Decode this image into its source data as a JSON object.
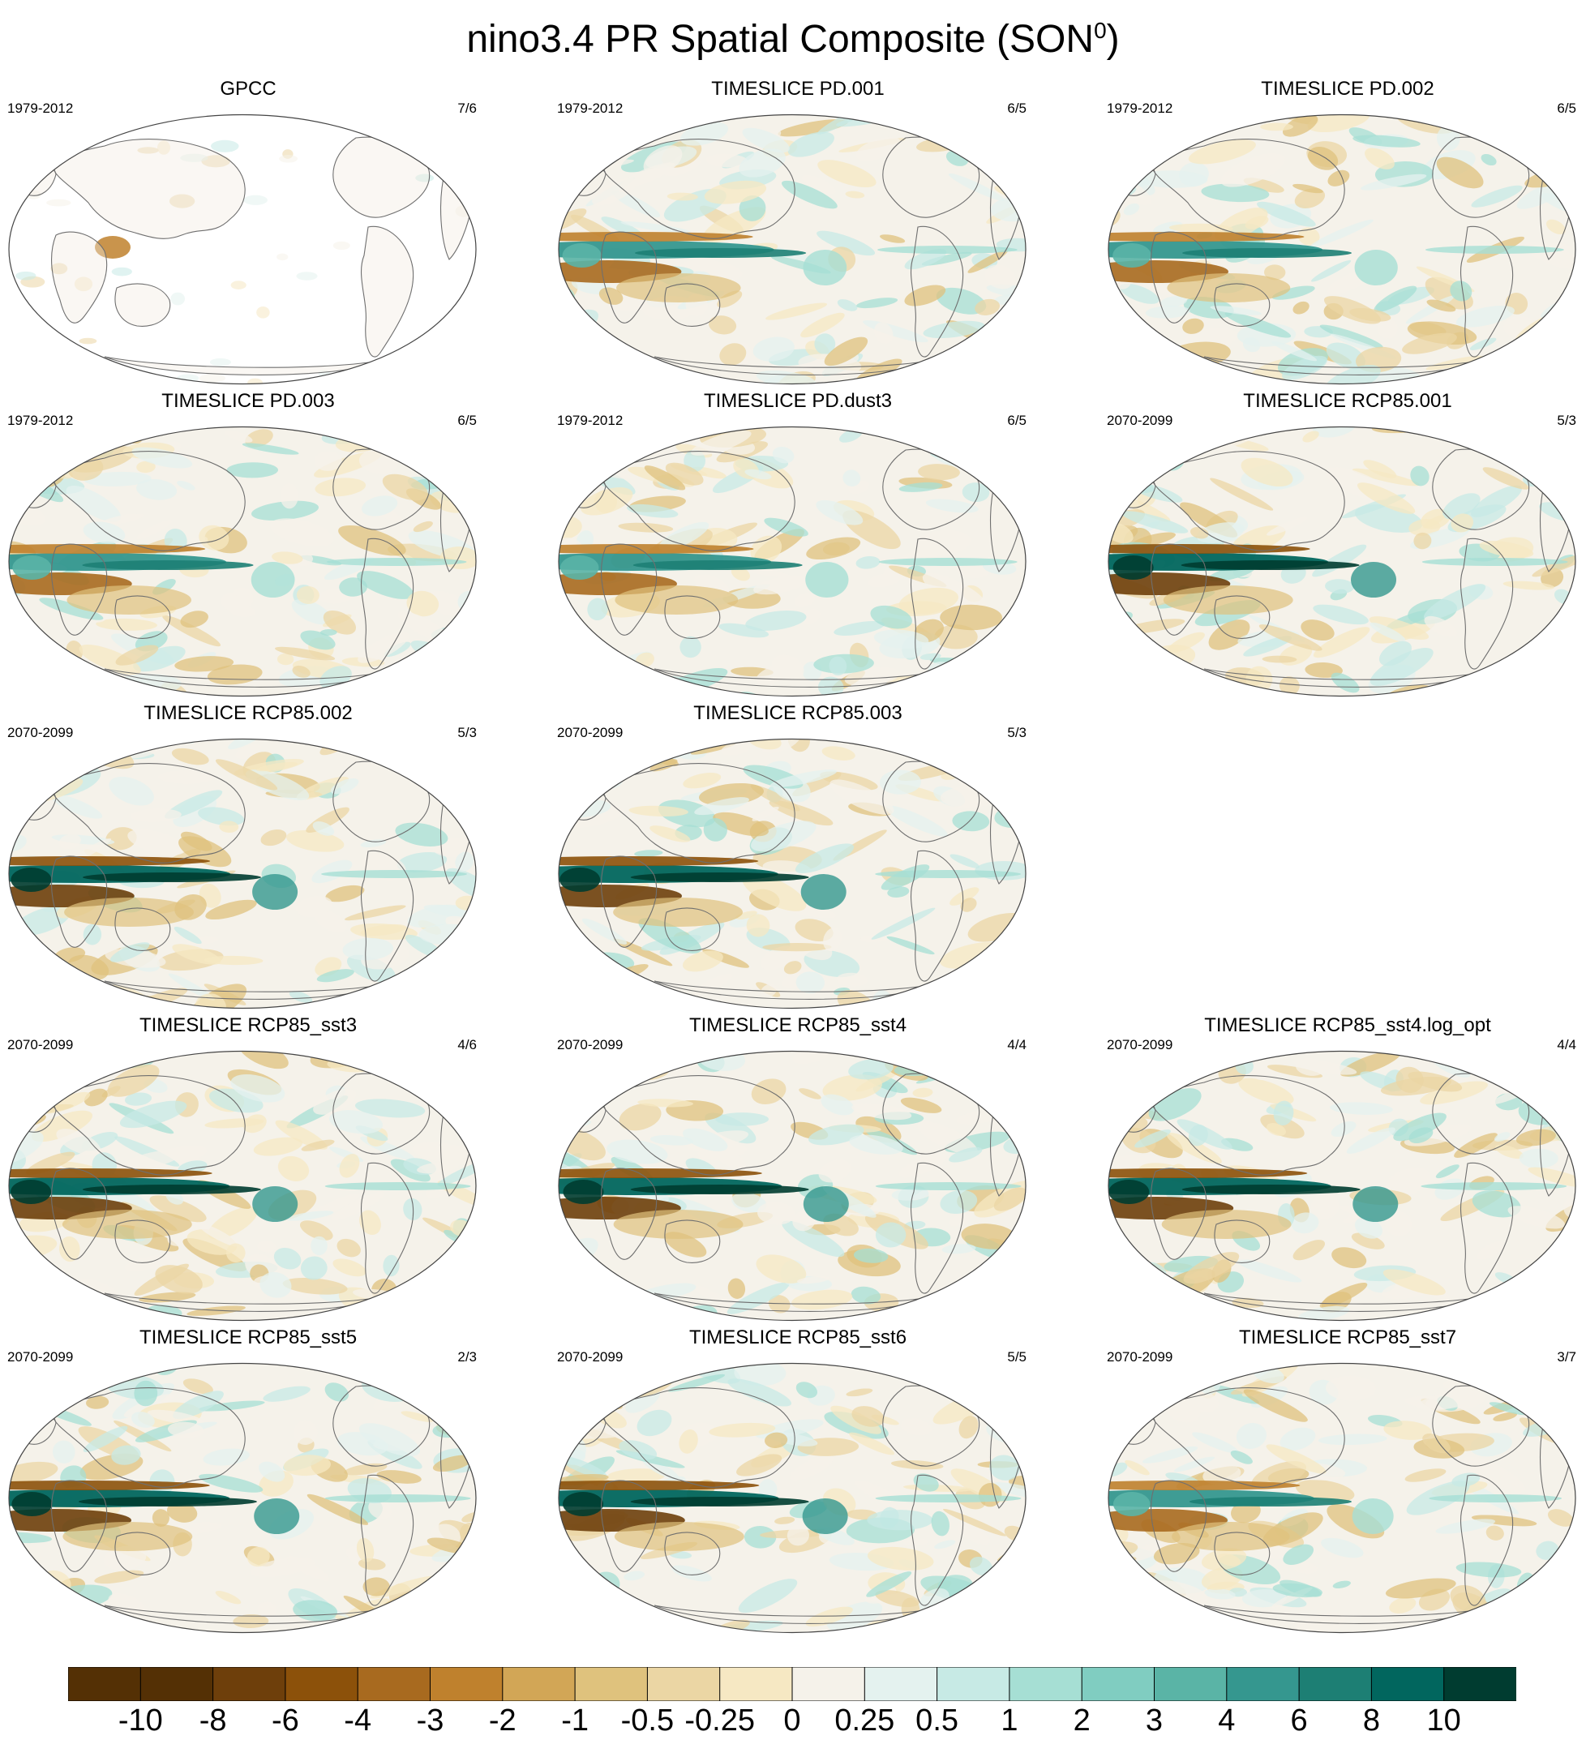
{
  "title": {
    "main": "nino3.4 PR Spatial Composite (SON",
    "superscript": "0",
    "close": ")"
  },
  "chart_data": {
    "type": "map-composite",
    "variable": "PR",
    "index": "nino3.4",
    "season": "SON0",
    "panels": [
      {
        "title": "GPCC",
        "period": "1979-2012",
        "count": "7/6",
        "ocean_data": false,
        "strength": 0.6,
        "seed": 3
      },
      {
        "title": "TIMESLICE PD.001",
        "period": "1979-2012",
        "count": "6/5",
        "ocean_data": true,
        "strength": 0.8,
        "seed": 11
      },
      {
        "title": "TIMESLICE PD.002",
        "period": "1979-2012",
        "count": "6/5",
        "ocean_data": true,
        "strength": 0.75,
        "seed": 17
      },
      {
        "title": "TIMESLICE PD.003",
        "period": "1979-2012",
        "count": "6/5",
        "ocean_data": true,
        "strength": 0.8,
        "seed": 23
      },
      {
        "title": "TIMESLICE PD.dust3",
        "period": "1979-2012",
        "count": "6/5",
        "ocean_data": true,
        "strength": 0.75,
        "seed": 29
      },
      {
        "title": "TIMESLICE RCP85.001",
        "period": "2070-2099",
        "count": "5/3",
        "ocean_data": true,
        "strength": 1.0,
        "seed": 31
      },
      {
        "title": "TIMESLICE RCP85.002",
        "period": "2070-2099",
        "count": "5/3",
        "ocean_data": true,
        "strength": 1.0,
        "seed": 37
      },
      {
        "title": "TIMESLICE RCP85.003",
        "period": "2070-2099",
        "count": "5/3",
        "ocean_data": true,
        "strength": 1.0,
        "seed": 41
      },
      {
        "title": "TIMESLICE RCP85_sst3",
        "period": "2070-2099",
        "count": "4/6",
        "ocean_data": true,
        "strength": 1.0,
        "seed": 43
      },
      {
        "title": "TIMESLICE RCP85_sst4",
        "period": "2070-2099",
        "count": "4/4",
        "ocean_data": true,
        "strength": 1.0,
        "seed": 47
      },
      {
        "title": "TIMESLICE RCP85_sst4.log_opt",
        "period": "2070-2099",
        "count": "4/4",
        "ocean_data": true,
        "strength": 1.0,
        "seed": 53
      },
      {
        "title": "TIMESLICE RCP85_sst5",
        "period": "2070-2099",
        "count": "2/3",
        "ocean_data": true,
        "strength": 1.0,
        "seed": 59
      },
      {
        "title": "TIMESLICE RCP85_sst6",
        "period": "2070-2099",
        "count": "5/5",
        "ocean_data": true,
        "strength": 1.0,
        "seed": 61
      },
      {
        "title": "TIMESLICE RCP85_sst7",
        "period": "2070-2099",
        "count": "3/7",
        "ocean_data": true,
        "strength": 0.55,
        "seed": 67
      }
    ],
    "colorbar": {
      "levels": [
        "-10",
        "-8",
        "-6",
        "-4",
        "-3",
        "-2",
        "-1",
        "-0.5",
        "-0.25",
        "0",
        "0.25",
        "0.5",
        "1",
        "2",
        "3",
        "4",
        "6",
        "8",
        "10"
      ],
      "colors": [
        "#543005",
        "#6e3f0b",
        "#8c510a",
        "#a86a1f",
        "#bf812d",
        "#d2a656",
        "#dfc27d",
        "#ebd6a4",
        "#f6e8c3",
        "#f5f2ea",
        "#e4f2ef",
        "#c7eae5",
        "#a6dfd4",
        "#80cdc1",
        "#5ab4a6",
        "#35978f",
        "#1d7f74",
        "#01665e",
        "#003c30"
      ]
    }
  }
}
